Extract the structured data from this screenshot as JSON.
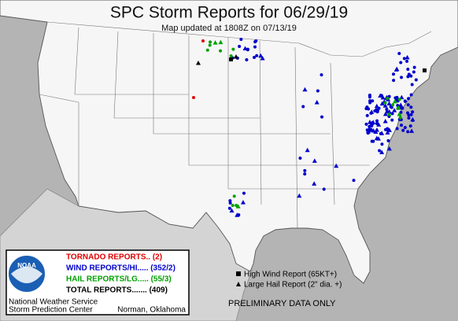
{
  "title": "SPC Storm Reports for 06/29/19",
  "subtitle": "Map updated at 1808Z on 07/13/19",
  "legend": {
    "tornado": "TORNADO REPORTS.. (2)",
    "wind": "WIND REPORTS/HI..... (352/2)",
    "hail": "HAIL REPORTS/LG..... (55/3)",
    "total": "TOTAL REPORTS....... (409)"
  },
  "logo": "NOAA",
  "office": {
    "line1": "National Weather Service",
    "line2": "Storm Prediction Center",
    "city": "Norman, Oklahoma"
  },
  "key": {
    "wind": "High Wind Report (65KT+)",
    "hail": "Large Hail Report (2\" dia. +)"
  },
  "footer": "PRELIMINARY DATA ONLY"
}
